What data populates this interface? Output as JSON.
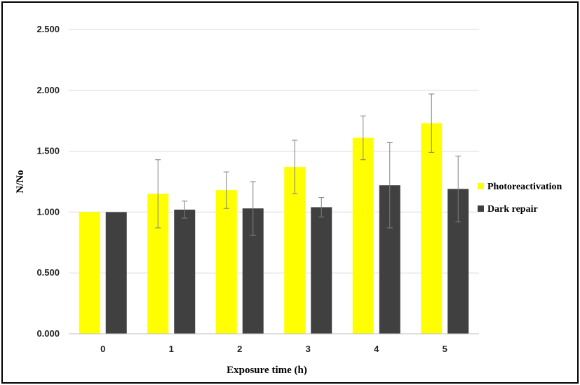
{
  "chart_data": {
    "type": "bar",
    "title": "",
    "xlabel": "Exposure time (h)",
    "ylabel": "N/No",
    "categories": [
      "0",
      "1",
      "2",
      "3",
      "4",
      "5"
    ],
    "ylim": [
      0,
      2.5
    ],
    "yticks": [
      "0.000",
      "0.500",
      "1.000",
      "1.500",
      "2.000",
      "2.500"
    ],
    "grid": true,
    "legend_position": "right",
    "series": [
      {
        "name": "Photoreactivation",
        "color": "#ffff00",
        "values": [
          1.0,
          1.15,
          1.18,
          1.37,
          1.61,
          1.73
        ],
        "errors": [
          0.0,
          0.28,
          0.15,
          0.22,
          0.18,
          0.24
        ]
      },
      {
        "name": "Dark repair",
        "color": "#404040",
        "values": [
          1.0,
          1.02,
          1.03,
          1.04,
          1.22,
          1.19
        ],
        "errors": [
          0.0,
          0.07,
          0.22,
          0.08,
          0.35,
          0.27
        ]
      }
    ]
  }
}
